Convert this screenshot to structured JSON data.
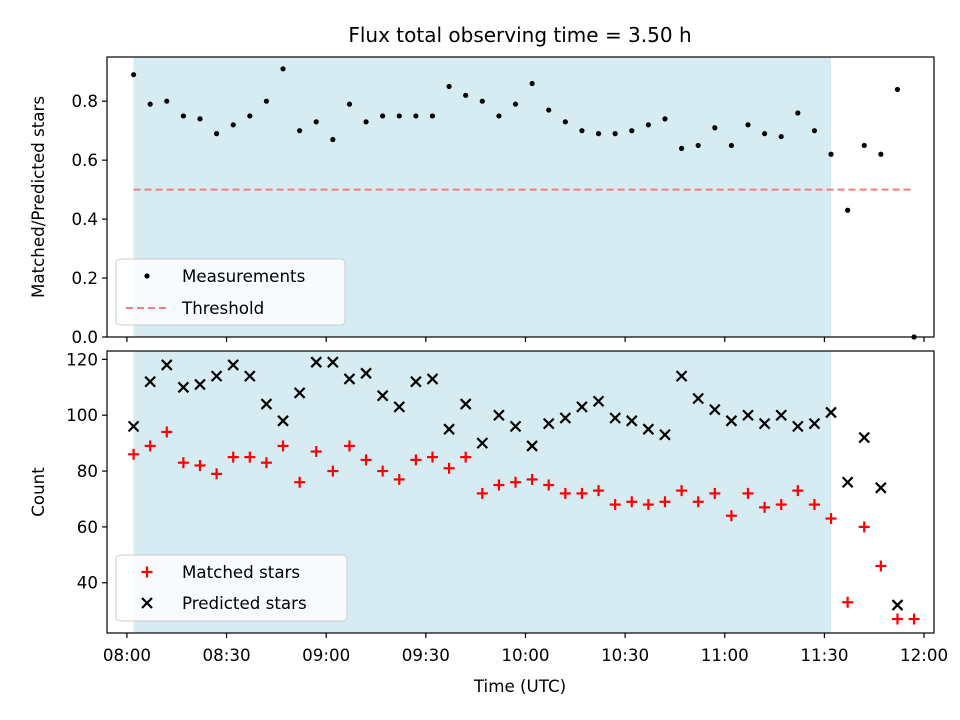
{
  "title": "Flux total observing time = 3.50 h",
  "xlabel": "Time (UTC)",
  "x_ticks": [
    "08:00",
    "08:30",
    "09:00",
    "09:30",
    "10:00",
    "10:30",
    "11:00",
    "11:30",
    "12:00"
  ],
  "colors": {
    "shade": "#add8e6",
    "measurements": "#000000",
    "threshold": "#f08080",
    "matched": "#ff0000",
    "predicted": "#000000"
  },
  "chart_data": [
    {
      "type": "scatter",
      "ylabel": "Matched/Predicted stars",
      "xlim": [
        "07:54",
        "12:03"
      ],
      "ylim": [
        0,
        0.95
      ],
      "y_ticks": [
        "0.0",
        "0.2",
        "0.4",
        "0.6",
        "0.8"
      ],
      "shaded_span": [
        "08:02",
        "11:32"
      ],
      "threshold": {
        "value": 0.5,
        "x": [
          "08:02",
          "11:57"
        ]
      },
      "legend": {
        "position": "lower left",
        "entries": [
          "Measurements",
          "Threshold"
        ]
      },
      "series": [
        {
          "name": "Measurements",
          "marker": "dot",
          "x": [
            "08:02",
            "08:07",
            "08:12",
            "08:17",
            "08:22",
            "08:27",
            "08:32",
            "08:37",
            "08:42",
            "08:47",
            "08:52",
            "08:57",
            "09:02",
            "09:07",
            "09:12",
            "09:17",
            "09:22",
            "09:27",
            "09:32",
            "09:37",
            "09:42",
            "09:47",
            "09:52",
            "09:57",
            "10:02",
            "10:07",
            "10:12",
            "10:17",
            "10:22",
            "10:27",
            "10:32",
            "10:37",
            "10:42",
            "10:47",
            "10:52",
            "10:57",
            "11:02",
            "11:07",
            "11:12",
            "11:17",
            "11:22",
            "11:27",
            "11:32",
            "11:37",
            "11:42",
            "11:47",
            "11:52",
            "11:57"
          ],
          "values": [
            0.89,
            0.79,
            0.8,
            0.75,
            0.74,
            0.69,
            0.72,
            0.75,
            0.8,
            0.91,
            0.7,
            0.73,
            0.67,
            0.79,
            0.73,
            0.75,
            0.75,
            0.75,
            0.75,
            0.85,
            0.82,
            0.8,
            0.75,
            0.79,
            0.86,
            0.77,
            0.73,
            0.7,
            0.69,
            0.69,
            0.7,
            0.72,
            0.74,
            0.64,
            0.65,
            0.71,
            0.65,
            0.72,
            0.69,
            0.68,
            0.76,
            0.7,
            0.62,
            0.43,
            0.65,
            0.62,
            0.84,
            0.0
          ]
        }
      ]
    },
    {
      "type": "scatter",
      "ylabel": "Count",
      "xlim": [
        "07:54",
        "12:03"
      ],
      "ylim": [
        22,
        123
      ],
      "y_ticks": [
        "40",
        "60",
        "80",
        "100",
        "120"
      ],
      "shaded_span": [
        "08:02",
        "11:32"
      ],
      "legend": {
        "position": "lower left",
        "entries": [
          "Matched stars",
          "Predicted stars"
        ]
      },
      "series": [
        {
          "name": "Matched stars",
          "marker": "plus",
          "x": [
            "08:02",
            "08:07",
            "08:12",
            "08:17",
            "08:22",
            "08:27",
            "08:32",
            "08:37",
            "08:42",
            "08:47",
            "08:52",
            "08:57",
            "09:02",
            "09:07",
            "09:12",
            "09:17",
            "09:22",
            "09:27",
            "09:32",
            "09:37",
            "09:42",
            "09:47",
            "09:52",
            "09:57",
            "10:02",
            "10:07",
            "10:12",
            "10:17",
            "10:22",
            "10:27",
            "10:32",
            "10:37",
            "10:42",
            "10:47",
            "10:52",
            "10:57",
            "11:02",
            "11:07",
            "11:12",
            "11:17",
            "11:22",
            "11:27",
            "11:32",
            "11:37",
            "11:42",
            "11:47",
            "11:52",
            "11:57"
          ],
          "values": [
            86,
            89,
            94,
            83,
            82,
            79,
            85,
            85,
            83,
            89,
            76,
            87,
            80,
            89,
            84,
            80,
            77,
            84,
            85,
            81,
            85,
            72,
            75,
            76,
            77,
            75,
            72,
            72,
            73,
            68,
            69,
            68,
            69,
            73,
            69,
            72,
            64,
            72,
            67,
            68,
            73,
            68,
            63,
            33,
            60,
            46,
            27,
            27
          ]
        },
        {
          "name": "Predicted stars",
          "marker": "x",
          "x": [
            "08:02",
            "08:07",
            "08:12",
            "08:17",
            "08:22",
            "08:27",
            "08:32",
            "08:37",
            "08:42",
            "08:47",
            "08:52",
            "08:57",
            "09:02",
            "09:07",
            "09:12",
            "09:17",
            "09:22",
            "09:27",
            "09:32",
            "09:37",
            "09:42",
            "09:47",
            "09:52",
            "09:57",
            "10:02",
            "10:07",
            "10:12",
            "10:17",
            "10:22",
            "10:27",
            "10:32",
            "10:37",
            "10:42",
            "10:47",
            "10:52",
            "10:57",
            "11:02",
            "11:07",
            "11:12",
            "11:17",
            "11:22",
            "11:27",
            "11:32",
            "11:37",
            "11:42",
            "11:47",
            "11:52"
          ],
          "values": [
            96,
            112,
            118,
            110,
            111,
            114,
            118,
            114,
            104,
            98,
            108,
            119,
            119,
            113,
            115,
            107,
            103,
            112,
            113,
            95,
            104,
            90,
            100,
            96,
            89,
            97,
            99,
            103,
            105,
            99,
            98,
            95,
            93,
            114,
            106,
            102,
            98,
            100,
            97,
            100,
            96,
            97,
            101,
            76,
            92,
            74,
            32
          ]
        }
      ]
    }
  ]
}
